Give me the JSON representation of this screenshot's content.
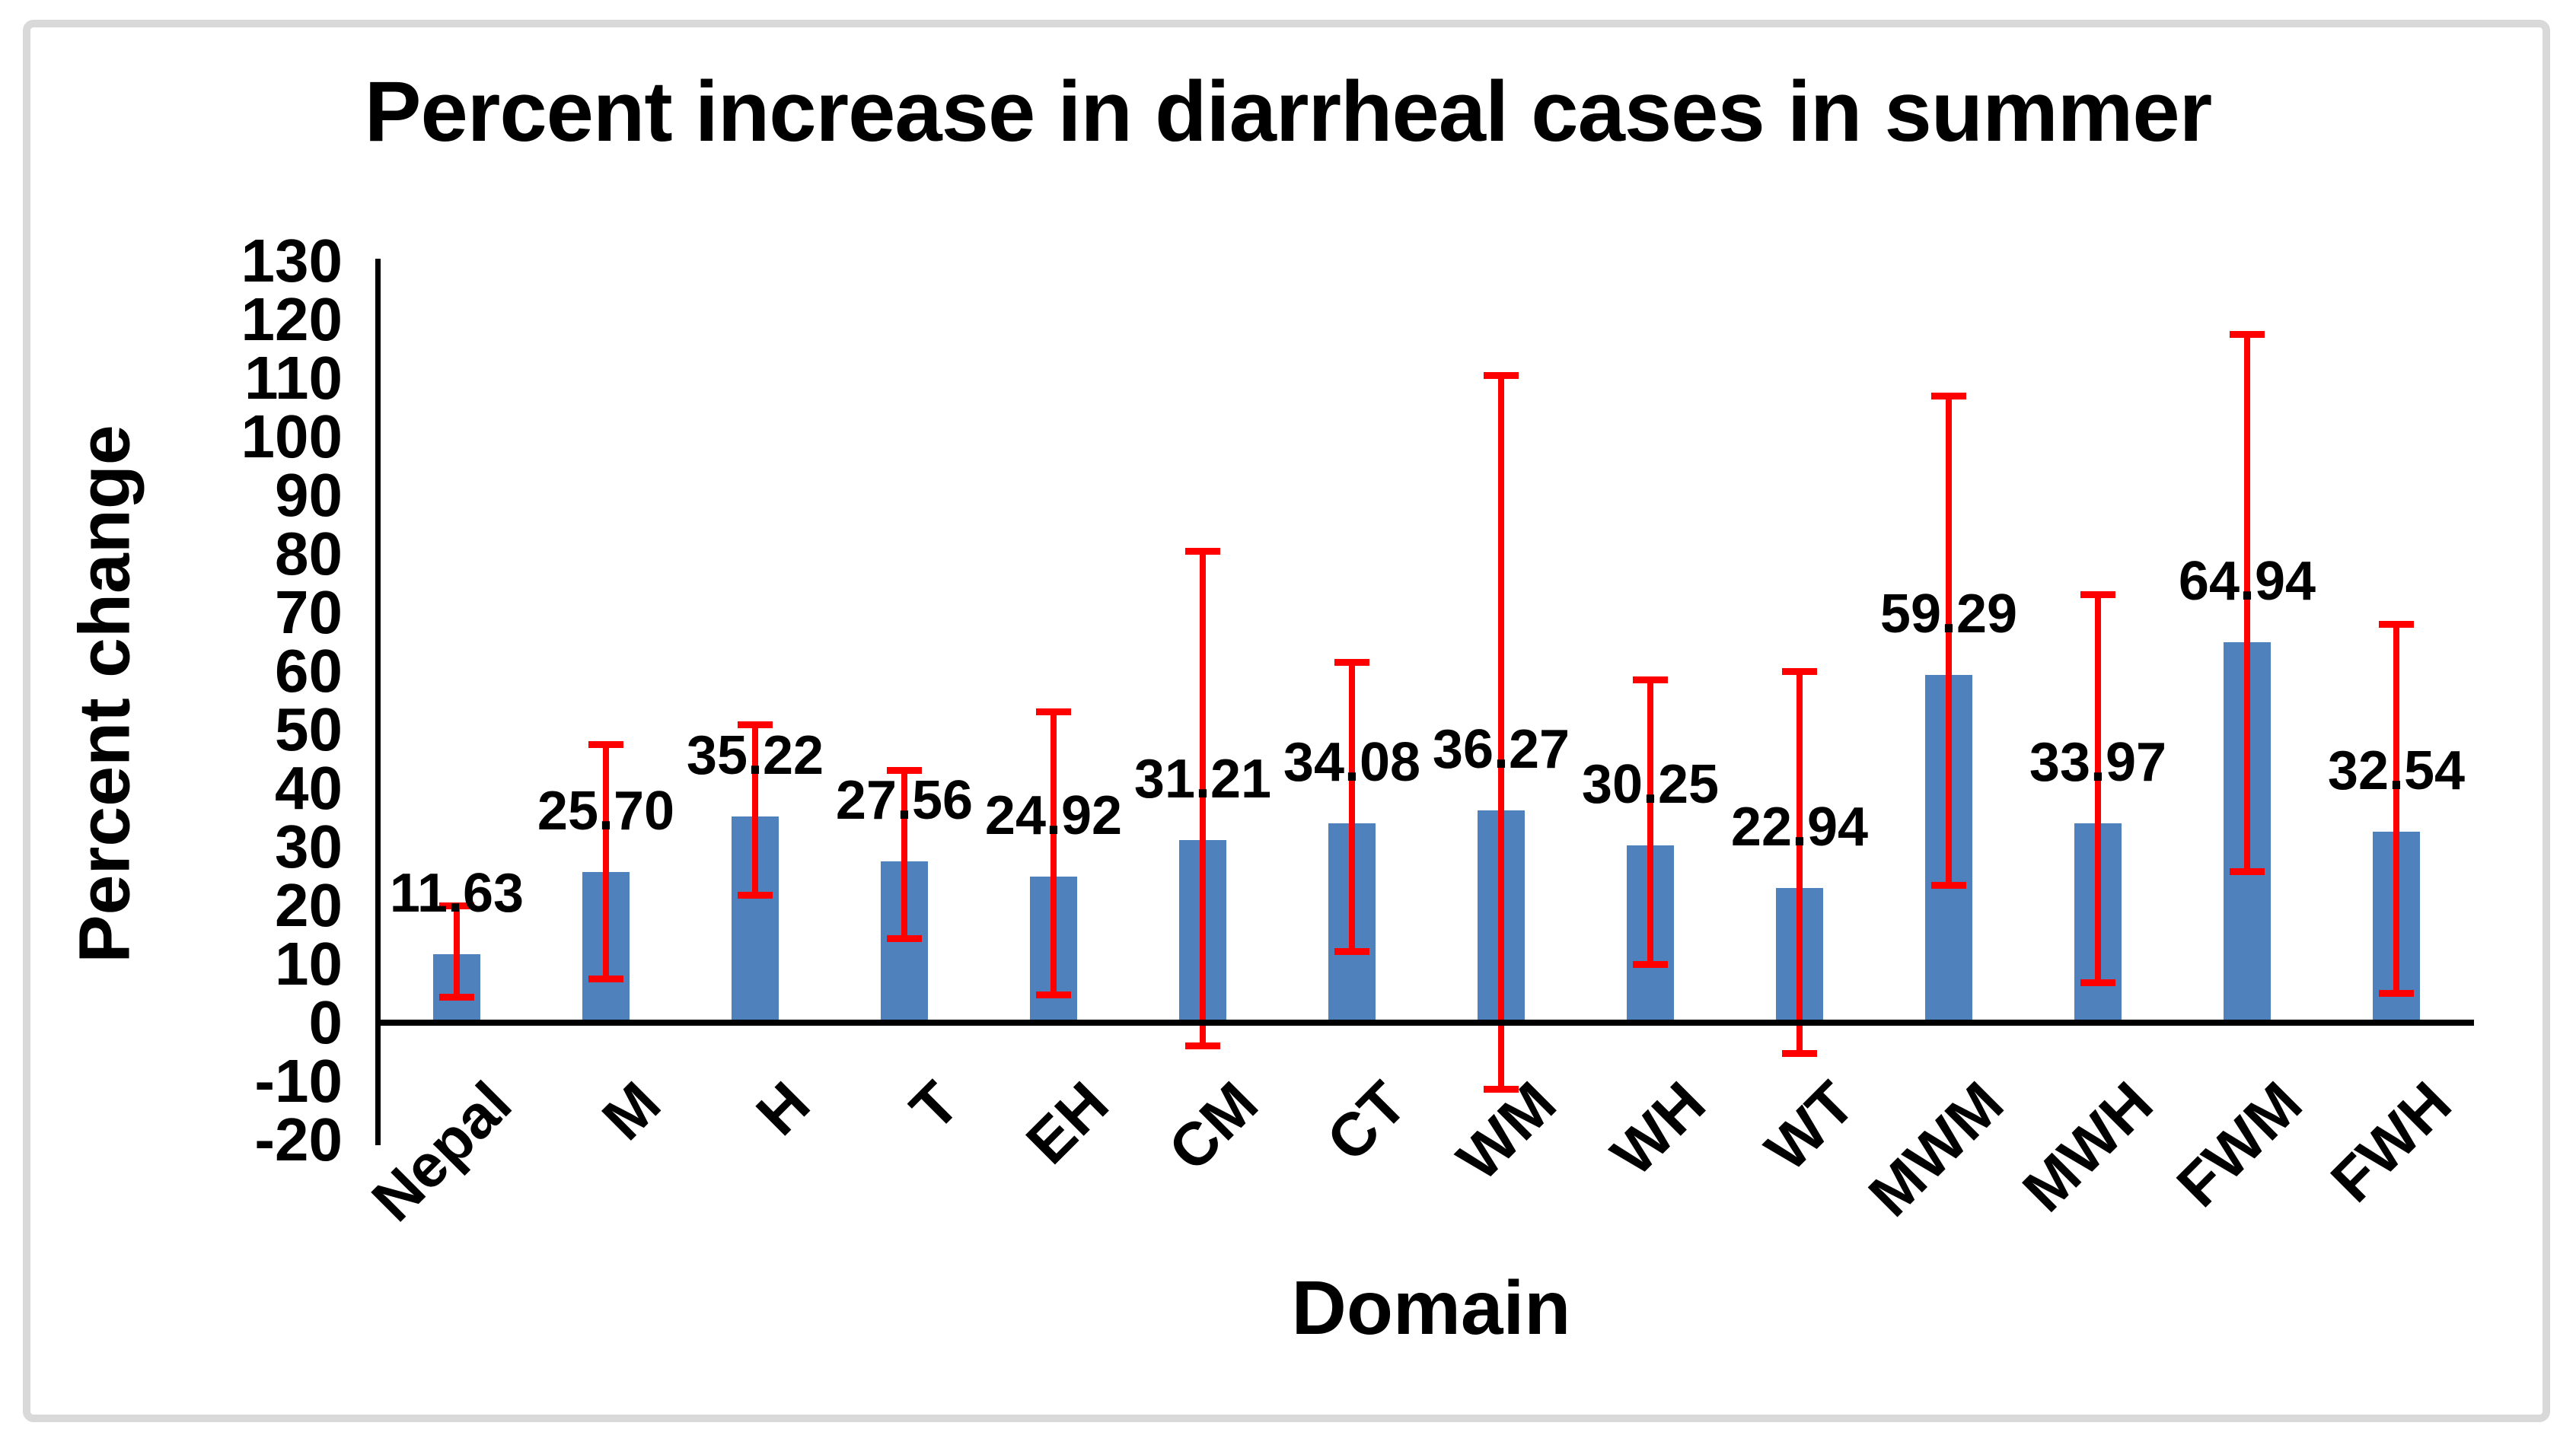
{
  "chart_data": {
    "type": "bar",
    "title": "Percent increase in diarrheal cases in summer",
    "xlabel": "Domain",
    "ylabel": "Percent change",
    "categories": [
      "Nepal",
      "M",
      "H",
      "T",
      "EH",
      "CM",
      "CT",
      "WM",
      "WH",
      "WT",
      "MWM",
      "MWH",
      "FWM",
      "FWH"
    ],
    "values": [
      11.63,
      25.7,
      35.22,
      27.56,
      24.92,
      31.21,
      34.08,
      36.27,
      30.25,
      22.94,
      59.29,
      33.97,
      64.94,
      32.54
    ],
    "data_labels": [
      "11.63",
      "25.70",
      "35.22",
      "27.56",
      "24.92",
      "31.21",
      "34.08",
      "36.27",
      "30.25",
      "22.94",
      "59.29",
      "33.97",
      "64.94",
      "32.54"
    ],
    "error_low": [
      4.3,
      7.5,
      21.8,
      14.4,
      4.8,
      -4.0,
      12.1,
      -11.3,
      9.9,
      -5.2,
      23.5,
      6.8,
      25.8,
      5.0
    ],
    "error_high": [
      20.0,
      47.5,
      50.8,
      43.0,
      53.0,
      80.5,
      61.5,
      110.5,
      58.5,
      60.0,
      107.0,
      73.0,
      117.5,
      68.0
    ],
    "ylim": [
      -20,
      130
    ],
    "ytick_step": 10,
    "yticks": [
      130,
      120,
      110,
      100,
      90,
      80,
      70,
      60,
      50,
      40,
      30,
      20,
      10,
      0,
      -10,
      -20
    ],
    "grid": false,
    "legend": false,
    "bar_color": "#4f81bd",
    "error_color": "#ff0000",
    "axis_color": "#000000",
    "text_color": "#000000",
    "frame_border_color": "#d9d9d9"
  }
}
